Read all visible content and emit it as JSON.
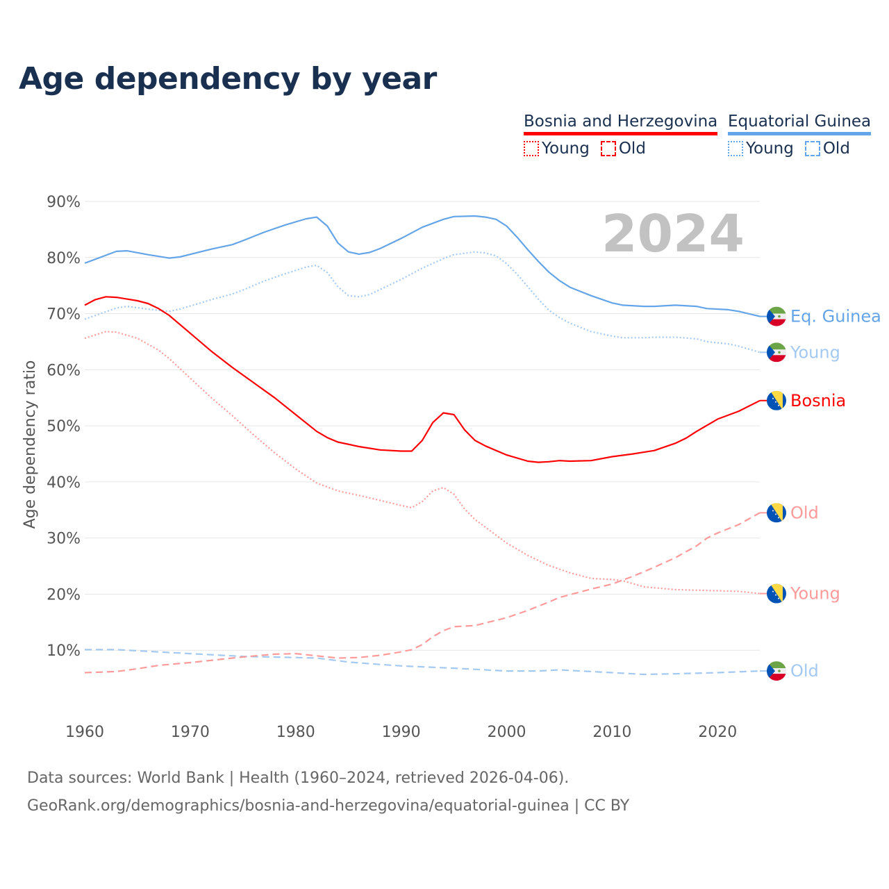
{
  "chart_data": {
    "type": "line",
    "title": "Age dependency by year",
    "ylabel": "Age dependency ratio",
    "xlabel": "",
    "year_watermark": "2024",
    "xlim": [
      1960,
      2024
    ],
    "ylim": [
      0,
      90
    ],
    "x_ticks": [
      "1960",
      "1970",
      "1980",
      "1990",
      "2000",
      "2010",
      "2020"
    ],
    "y_ticks": [
      "10%",
      "20%",
      "30%",
      "40%",
      "50%",
      "60%",
      "70%",
      "80%",
      "90%"
    ],
    "grid": true,
    "legend": {
      "placement": "top-right",
      "groups": [
        {
          "country": "Bosnia and Herzegovina",
          "color": "#ff0000",
          "items": [
            "Young",
            "Old"
          ]
        },
        {
          "country": "Equatorial Guinea",
          "color": "#63a5e8",
          "items": [
            "Young",
            "Old"
          ]
        }
      ]
    },
    "series": [
      {
        "name": "Equatorial Guinea",
        "end_label": "Eq. Guinea",
        "flag": "equatorial-guinea",
        "color": "#63a5e8",
        "style": "solid",
        "points": [
          [
            1960,
            79.0
          ],
          [
            1963,
            81.1
          ],
          [
            1964,
            81.2
          ],
          [
            1966,
            80.5
          ],
          [
            1968,
            79.9
          ],
          [
            1969,
            80.1
          ],
          [
            1972,
            81.5
          ],
          [
            1974,
            82.3
          ],
          [
            1975,
            83.0
          ],
          [
            1977,
            84.5
          ],
          [
            1979,
            85.8
          ],
          [
            1981,
            86.9
          ],
          [
            1982,
            87.2
          ],
          [
            1983,
            85.6
          ],
          [
            1984,
            82.6
          ],
          [
            1985,
            81.0
          ],
          [
            1986,
            80.6
          ],
          [
            1987,
            80.9
          ],
          [
            1988,
            81.6
          ],
          [
            1990,
            83.4
          ],
          [
            1992,
            85.4
          ],
          [
            1994,
            86.8
          ],
          [
            1995,
            87.3
          ],
          [
            1997,
            87.4
          ],
          [
            1998,
            87.2
          ],
          [
            1999,
            86.8
          ],
          [
            2000,
            85.6
          ],
          [
            2001,
            83.6
          ],
          [
            2002,
            81.4
          ],
          [
            2003,
            79.3
          ],
          [
            2004,
            77.4
          ],
          [
            2005,
            75.9
          ],
          [
            2006,
            74.7
          ],
          [
            2008,
            73.2
          ],
          [
            2010,
            71.9
          ],
          [
            2011,
            71.5
          ],
          [
            2013,
            71.3
          ],
          [
            2014,
            71.3
          ],
          [
            2016,
            71.5
          ],
          [
            2018,
            71.3
          ],
          [
            2019,
            70.9
          ],
          [
            2021,
            70.7
          ],
          [
            2022,
            70.4
          ],
          [
            2024,
            69.5
          ]
        ]
      },
      {
        "name": "Equatorial Guinea Young",
        "end_label": "Young",
        "flag": "equatorial-guinea",
        "color": "#a3c9f1",
        "style": "dotted",
        "points": [
          [
            1960,
            69.0
          ],
          [
            1963,
            71.0
          ],
          [
            1964,
            71.3
          ],
          [
            1966,
            70.8
          ],
          [
            1968,
            70.4
          ],
          [
            1969,
            70.8
          ],
          [
            1972,
            72.5
          ],
          [
            1974,
            73.5
          ],
          [
            1975,
            74.2
          ],
          [
            1977,
            75.8
          ],
          [
            1979,
            77.1
          ],
          [
            1981,
            78.3
          ],
          [
            1982,
            78.6
          ],
          [
            1983,
            77.3
          ],
          [
            1984,
            74.8
          ],
          [
            1985,
            73.2
          ],
          [
            1986,
            73.0
          ],
          [
            1987,
            73.4
          ],
          [
            1988,
            74.3
          ],
          [
            1990,
            76.1
          ],
          [
            1992,
            78.1
          ],
          [
            1994,
            79.8
          ],
          [
            1995,
            80.5
          ],
          [
            1997,
            81.0
          ],
          [
            1998,
            80.8
          ],
          [
            1999,
            80.3
          ],
          [
            2000,
            78.9
          ],
          [
            2001,
            77.0
          ],
          [
            2002,
            74.8
          ],
          [
            2003,
            72.6
          ],
          [
            2004,
            70.6
          ],
          [
            2005,
            69.3
          ],
          [
            2006,
            68.3
          ],
          [
            2008,
            66.8
          ],
          [
            2010,
            66.0
          ],
          [
            2011,
            65.7
          ],
          [
            2013,
            65.7
          ],
          [
            2014,
            65.8
          ],
          [
            2016,
            65.8
          ],
          [
            2018,
            65.5
          ],
          [
            2019,
            65.0
          ],
          [
            2021,
            64.6
          ],
          [
            2022,
            64.2
          ],
          [
            2024,
            63.1
          ]
        ]
      },
      {
        "name": "Equatorial Guinea Old",
        "end_label": "Old",
        "flag": "equatorial-guinea",
        "color": "#a3c9f1",
        "style": "dashed",
        "points": [
          [
            1960,
            10.1
          ],
          [
            1963,
            10.1
          ],
          [
            1966,
            9.8
          ],
          [
            1970,
            9.4
          ],
          [
            1975,
            8.9
          ],
          [
            1980,
            8.7
          ],
          [
            1982,
            8.6
          ],
          [
            1985,
            7.9
          ],
          [
            1987,
            7.6
          ],
          [
            1990,
            7.2
          ],
          [
            1995,
            6.8
          ],
          [
            2000,
            6.3
          ],
          [
            2003,
            6.3
          ],
          [
            2005,
            6.5
          ],
          [
            2010,
            6.0
          ],
          [
            2013,
            5.7
          ],
          [
            2016,
            5.8
          ],
          [
            2020,
            6.0
          ],
          [
            2024,
            6.3
          ]
        ]
      },
      {
        "name": "Bosnia and Herzegovina",
        "end_label": "Bosnia",
        "flag": "bosnia",
        "color": "#ff0000",
        "style": "solid",
        "points": [
          [
            1960,
            71.5
          ],
          [
            1961,
            72.5
          ],
          [
            1962,
            73.0
          ],
          [
            1963,
            72.9
          ],
          [
            1964,
            72.6
          ],
          [
            1965,
            72.3
          ],
          [
            1966,
            71.8
          ],
          [
            1967,
            70.9
          ],
          [
            1968,
            69.7
          ],
          [
            1970,
            66.5
          ],
          [
            1972,
            63.3
          ],
          [
            1974,
            60.4
          ],
          [
            1976,
            57.7
          ],
          [
            1978,
            55.0
          ],
          [
            1980,
            52.0
          ],
          [
            1982,
            49.0
          ],
          [
            1983,
            47.9
          ],
          [
            1984,
            47.1
          ],
          [
            1986,
            46.3
          ],
          [
            1988,
            45.7
          ],
          [
            1990,
            45.5
          ],
          [
            1991,
            45.5
          ],
          [
            1992,
            47.4
          ],
          [
            1993,
            50.6
          ],
          [
            1994,
            52.3
          ],
          [
            1995,
            52.0
          ],
          [
            1996,
            49.3
          ],
          [
            1997,
            47.4
          ],
          [
            1998,
            46.4
          ],
          [
            2000,
            44.8
          ],
          [
            2002,
            43.7
          ],
          [
            2003,
            43.5
          ],
          [
            2004,
            43.6
          ],
          [
            2005,
            43.8
          ],
          [
            2006,
            43.7
          ],
          [
            2008,
            43.8
          ],
          [
            2010,
            44.5
          ],
          [
            2012,
            45.0
          ],
          [
            2013,
            45.3
          ],
          [
            2014,
            45.6
          ],
          [
            2016,
            46.9
          ],
          [
            2017,
            47.8
          ],
          [
            2018,
            49.0
          ],
          [
            2019,
            50.1
          ],
          [
            2020,
            51.2
          ],
          [
            2022,
            52.6
          ],
          [
            2024,
            54.5
          ]
        ]
      },
      {
        "name": "Bosnia and Herzegovina Young",
        "end_label": "Young",
        "flag": "bosnia",
        "color": "#ff9a9a",
        "style": "dotted",
        "points": [
          [
            1960,
            65.6
          ],
          [
            1962,
            66.8
          ],
          [
            1963,
            66.7
          ],
          [
            1965,
            65.6
          ],
          [
            1967,
            63.5
          ],
          [
            1968,
            62.0
          ],
          [
            1970,
            58.5
          ],
          [
            1972,
            55.0
          ],
          [
            1974,
            51.8
          ],
          [
            1976,
            48.4
          ],
          [
            1978,
            45.2
          ],
          [
            1980,
            42.3
          ],
          [
            1982,
            39.8
          ],
          [
            1984,
            38.4
          ],
          [
            1986,
            37.6
          ],
          [
            1988,
            36.7
          ],
          [
            1990,
            35.8
          ],
          [
            1991,
            35.4
          ],
          [
            1992,
            36.5
          ],
          [
            1993,
            38.4
          ],
          [
            1994,
            39.0
          ],
          [
            1995,
            37.8
          ],
          [
            1996,
            35.2
          ],
          [
            1997,
            33.3
          ],
          [
            1998,
            31.9
          ],
          [
            2000,
            29.1
          ],
          [
            2002,
            26.9
          ],
          [
            2004,
            25.1
          ],
          [
            2006,
            23.8
          ],
          [
            2008,
            22.8
          ],
          [
            2010,
            22.6
          ],
          [
            2011,
            22.4
          ],
          [
            2013,
            21.3
          ],
          [
            2016,
            20.8
          ],
          [
            2020,
            20.6
          ],
          [
            2022,
            20.5
          ],
          [
            2024,
            20.1
          ]
        ]
      },
      {
        "name": "Bosnia and Herzegovina Old",
        "end_label": "Old",
        "flag": "bosnia",
        "color": "#ff9a9a",
        "style": "dashed",
        "points": [
          [
            1960,
            6.0
          ],
          [
            1963,
            6.2
          ],
          [
            1965,
            6.7
          ],
          [
            1967,
            7.3
          ],
          [
            1970,
            7.8
          ],
          [
            1975,
            8.8
          ],
          [
            1978,
            9.3
          ],
          [
            1980,
            9.4
          ],
          [
            1982,
            9.0
          ],
          [
            1984,
            8.6
          ],
          [
            1986,
            8.7
          ],
          [
            1988,
            9.1
          ],
          [
            1990,
            9.7
          ],
          [
            1991,
            10.1
          ],
          [
            1992,
            11.0
          ],
          [
            1993,
            12.4
          ],
          [
            1994,
            13.5
          ],
          [
            1995,
            14.2
          ],
          [
            1997,
            14.4
          ],
          [
            2000,
            15.8
          ],
          [
            2002,
            17.1
          ],
          [
            2004,
            18.6
          ],
          [
            2005,
            19.4
          ],
          [
            2008,
            20.9
          ],
          [
            2010,
            21.8
          ],
          [
            2012,
            23.2
          ],
          [
            2014,
            24.8
          ],
          [
            2016,
            26.5
          ],
          [
            2018,
            28.6
          ],
          [
            2019,
            30.0
          ],
          [
            2020,
            30.9
          ],
          [
            2022,
            32.4
          ],
          [
            2024,
            34.5
          ]
        ]
      }
    ]
  },
  "footer": {
    "line1": "Data sources: World Bank | Health (1960–2024, retrieved 2026-04-06).",
    "line2": "GeoRank.org/demographics/bosnia-and-herzegovina/equatorial-guinea | CC BY"
  }
}
